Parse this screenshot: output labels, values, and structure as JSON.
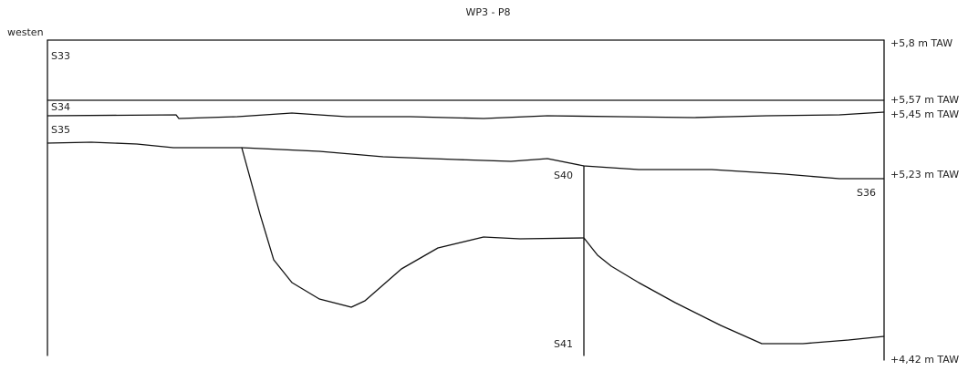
{
  "title": "WP3 - P8",
  "side_label": "westen",
  "layers": {
    "s33": "S33",
    "s34": "S34",
    "s35": "S35",
    "s36": "S36",
    "s40": "S40",
    "s41": "S41"
  },
  "elevations": [
    "+5,8 m TAW",
    "+5,57 m TAW",
    "+5,45 m TAW",
    "+5,23 m TAW",
    "+4,42 m TAW"
  ]
}
